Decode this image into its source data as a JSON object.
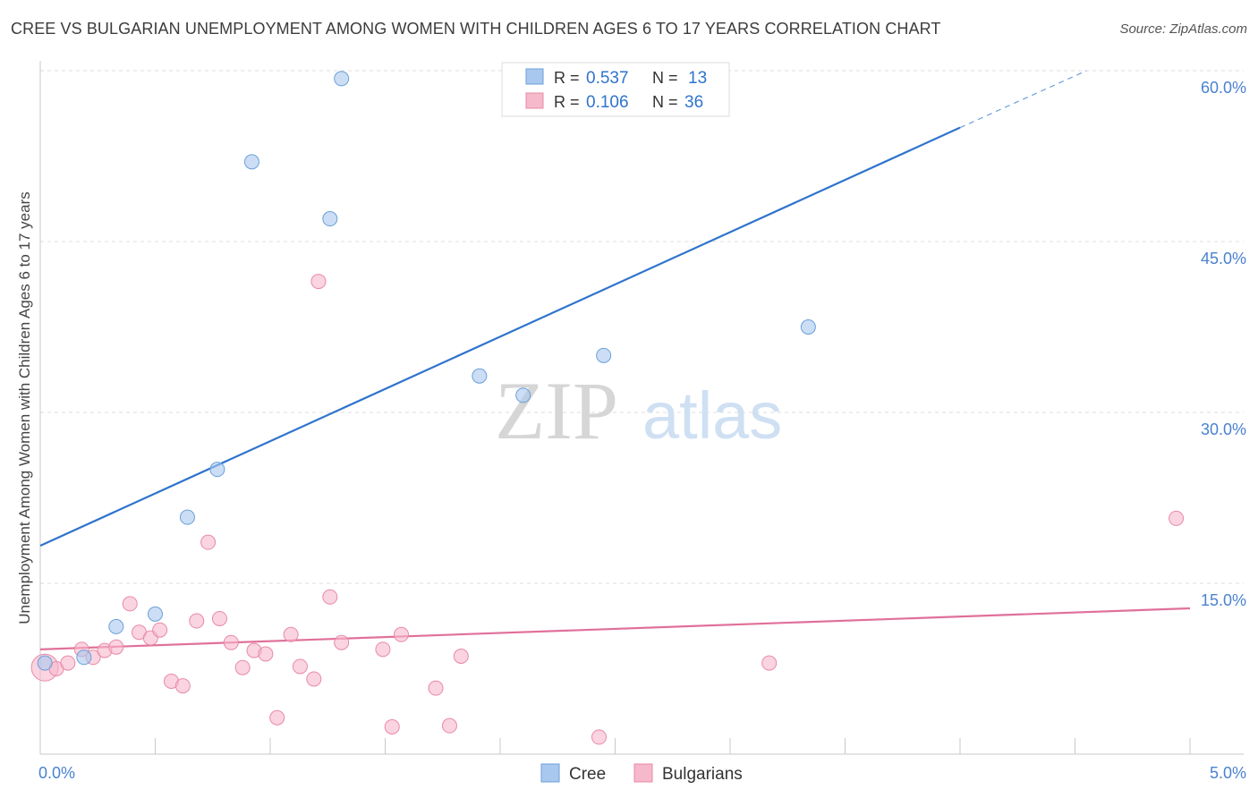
{
  "chart_data": {
    "type": "scatter",
    "title": "CREE VS BULGARIAN UNEMPLOYMENT AMONG WOMEN WITH CHILDREN AGES 6 TO 17 YEARS CORRELATION CHART",
    "source": "Source: ZipAtlas.com",
    "xlabel": "",
    "ylabel": "Unemployment Among Women with Children Ages 6 to 17 years",
    "xlim": [
      0,
      5
    ],
    "ylim": [
      0,
      60
    ],
    "x_tick_labels": [
      {
        "value": 0,
        "label": "0.0%"
      },
      {
        "value": 5,
        "label": "5.0%"
      }
    ],
    "y_tick_labels": [
      {
        "value": 15,
        "label": "15.0%"
      },
      {
        "value": 30,
        "label": "30.0%"
      },
      {
        "value": 45,
        "label": "45.0%"
      },
      {
        "value": 60,
        "label": "60.0%"
      }
    ],
    "watermark": {
      "part1": "ZIP",
      "part2": "atlas"
    },
    "legend": [
      {
        "name": "Cree",
        "r_label": "R =",
        "r_value": "0.537",
        "n_label": "N =",
        "n_value": "13"
      },
      {
        "name": "Bulgarians",
        "r_label": "R =",
        "r_value": "0.106",
        "n_label": "N =",
        "n_value": "36"
      }
    ],
    "series": [
      {
        "name": "Cree",
        "color": "#a9c8ef",
        "stroke": "#6a9fd8",
        "line_color": "#2f74cc",
        "points": [
          [
            0.02,
            8.0
          ],
          [
            0.19,
            8.5
          ],
          [
            0.33,
            11.2
          ],
          [
            0.5,
            12.3
          ],
          [
            0.64,
            20.8
          ],
          [
            0.77,
            25.0
          ],
          [
            0.92,
            52.0
          ],
          [
            1.26,
            47.0
          ],
          [
            1.31,
            59.3
          ],
          [
            1.91,
            33.2
          ],
          [
            2.1,
            31.5
          ],
          [
            2.45,
            35.0
          ],
          [
            3.34,
            37.5
          ]
        ],
        "trend": {
          "x0": 0.0,
          "y0": 18.3,
          "x1": 4.0,
          "y1": 55.0,
          "dash_x1": 4.55,
          "dash_y1": 60.0
        }
      },
      {
        "name": "Bulgarians",
        "color": "#f6b8cb",
        "stroke": "#e88aa7",
        "line_color": "#e0709a",
        "points": [
          [
            0.02,
            7.6
          ],
          [
            0.07,
            7.5
          ],
          [
            0.12,
            8.0
          ],
          [
            0.18,
            9.2
          ],
          [
            0.23,
            8.5
          ],
          [
            0.28,
            9.1
          ],
          [
            0.33,
            9.4
          ],
          [
            0.39,
            13.2
          ],
          [
            0.43,
            10.7
          ],
          [
            0.48,
            10.2
          ],
          [
            0.52,
            10.9
          ],
          [
            0.57,
            6.4
          ],
          [
            0.62,
            6.0
          ],
          [
            0.68,
            11.7
          ],
          [
            0.73,
            18.6
          ],
          [
            0.78,
            11.9
          ],
          [
            0.83,
            9.8
          ],
          [
            0.88,
            7.6
          ],
          [
            0.93,
            9.1
          ],
          [
            0.98,
            8.8
          ],
          [
            1.03,
            3.2
          ],
          [
            1.09,
            10.5
          ],
          [
            1.13,
            7.7
          ],
          [
            1.19,
            6.6
          ],
          [
            1.21,
            41.5
          ],
          [
            1.26,
            13.8
          ],
          [
            1.31,
            9.8
          ],
          [
            1.49,
            9.2
          ],
          [
            1.53,
            2.4
          ],
          [
            1.57,
            10.5
          ],
          [
            1.72,
            5.8
          ],
          [
            1.78,
            2.5
          ],
          [
            1.83,
            8.6
          ],
          [
            2.43,
            1.5
          ],
          [
            3.17,
            8.0
          ],
          [
            4.94,
            20.7
          ]
        ],
        "trend": {
          "x0": 0.0,
          "y0": 9.2,
          "x1": 5.0,
          "y1": 12.8
        }
      }
    ]
  }
}
